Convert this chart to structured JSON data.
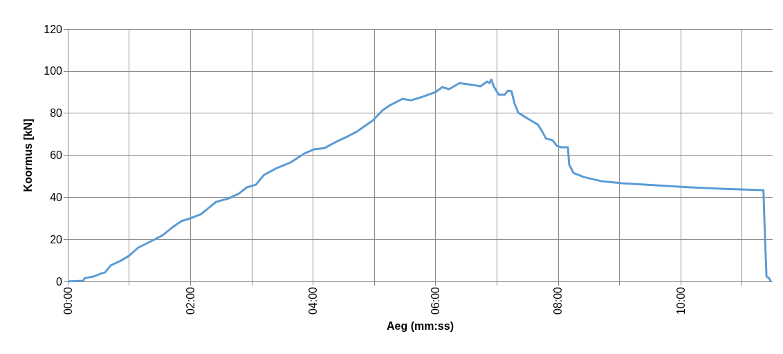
{
  "chart_data": {
    "type": "line",
    "xlabel": "Aeg (mm:ss)",
    "ylabel": "Koormus [kN]",
    "xlim": [
      0,
      11.5
    ],
    "xticks": [
      {
        "value": 0,
        "label": "00:00"
      },
      {
        "value": 1,
        "label": null
      },
      {
        "value": 2,
        "label": "02:00"
      },
      {
        "value": 3,
        "label": null
      },
      {
        "value": 4,
        "label": "04:00"
      },
      {
        "value": 5,
        "label": null
      },
      {
        "value": 6,
        "label": "06:00"
      },
      {
        "value": 7,
        "label": null
      },
      {
        "value": 8,
        "label": "08:00"
      },
      {
        "value": 9,
        "label": null
      },
      {
        "value": 10,
        "label": "10:00"
      },
      {
        "value": 11,
        "label": null
      }
    ],
    "ylim": [
      0,
      120
    ],
    "yticks": [
      0,
      20,
      40,
      60,
      80,
      100,
      120
    ],
    "grid": true,
    "marker": "none",
    "line_style": "solid",
    "series": [
      {
        "color": "#5b9bd5",
        "x": [
          0,
          0.25,
          0.28,
          0.42,
          0.53,
          0.61,
          0.7,
          0.87,
          1.0,
          1.15,
          1.38,
          1.55,
          1.72,
          1.85,
          2.0,
          2.17,
          2.28,
          2.42,
          2.62,
          2.79,
          2.92,
          3.07,
          3.2,
          3.41,
          3.63,
          3.86,
          4.02,
          4.19,
          4.36,
          4.57,
          4.72,
          4.85,
          4.98,
          5.13,
          5.26,
          5.46,
          5.6,
          5.79,
          6.0,
          6.11,
          6.22,
          6.39,
          6.62,
          6.73,
          6.84,
          6.88,
          6.91,
          6.95,
          7.03,
          7.13,
          7.18,
          7.24,
          7.29,
          7.35,
          7.46,
          7.57,
          7.67,
          7.74,
          7.8,
          7.91,
          7.98,
          8.05,
          8.16,
          8.18,
          8.25,
          8.42,
          8.7,
          9.04,
          9.6,
          10.16,
          10.73,
          11.35,
          11.37,
          11.4,
          11.44,
          11.47
        ],
        "values": [
          0,
          0.3,
          1.6,
          2.3,
          3.6,
          4.3,
          7.6,
          9.9,
          12.2,
          16.1,
          19.4,
          22,
          26,
          28.6,
          30,
          31.9,
          34.5,
          37.8,
          39.4,
          41.7,
          44.7,
          46,
          50.6,
          53.9,
          56.5,
          60.8,
          62.8,
          63.4,
          66.1,
          69,
          71.3,
          74,
          76.6,
          81.2,
          83.8,
          86.8,
          86.1,
          87.8,
          90,
          92.4,
          91.4,
          94.3,
          93.4,
          92.7,
          95,
          94.3,
          96,
          92.7,
          88.8,
          88.8,
          90.7,
          90.4,
          84.5,
          80.2,
          78.2,
          76.3,
          74.6,
          71.3,
          68,
          67.1,
          64.4,
          63.8,
          63.8,
          55.6,
          51.6,
          49.6,
          47.7,
          46.7,
          45.7,
          44.7,
          44,
          43.4,
          25.3,
          2.3,
          1.6,
          0
        ]
      }
    ]
  }
}
